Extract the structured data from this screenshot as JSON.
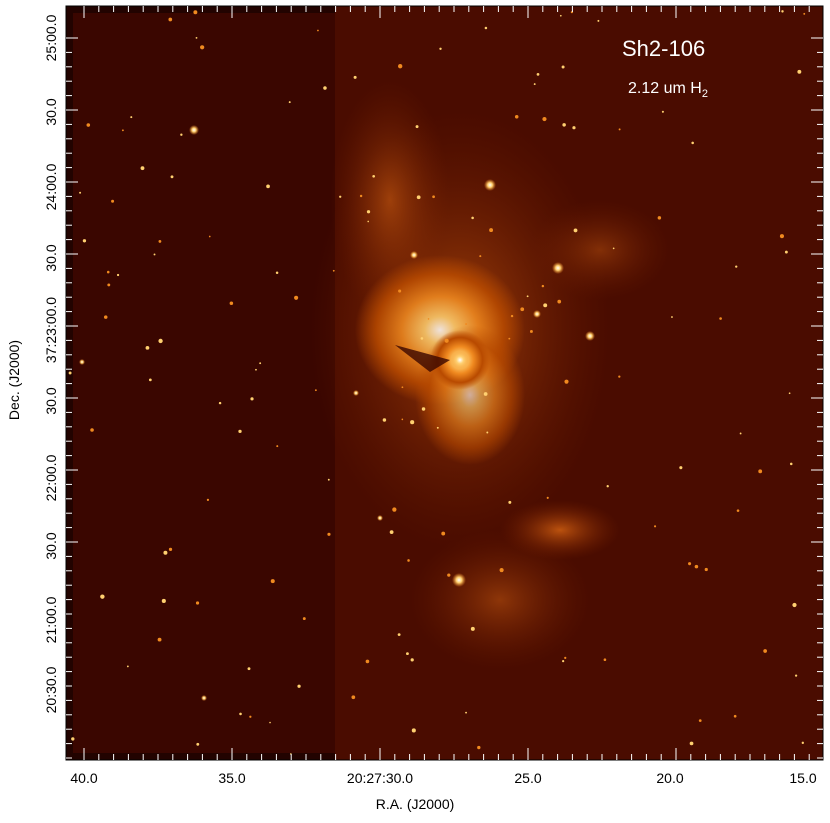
{
  "figure": {
    "title": "Sh2-106",
    "subtitle_main": "2.12 um H",
    "subtitle_sub": "2",
    "xaxis_title": "R.A. (J2000)",
    "yaxis_title": "Dec. (J2000)",
    "x_ticks": [
      "40.0",
      "35.0",
      "20:27:30.0",
      "25.0",
      "20.0",
      "15.0"
    ],
    "y_ticks": [
      "25:00.0",
      "30.0",
      "24:00.0",
      "30.0",
      "37:23:00.0",
      "30.0",
      "22:00.0",
      "30.0",
      "21:00.0",
      "20:30.0"
    ],
    "colormap": [
      "#000000",
      "#3a0600",
      "#6b1a00",
      "#b84a00",
      "#f08a20",
      "#ffd070",
      "#ffffff"
    ]
  }
}
